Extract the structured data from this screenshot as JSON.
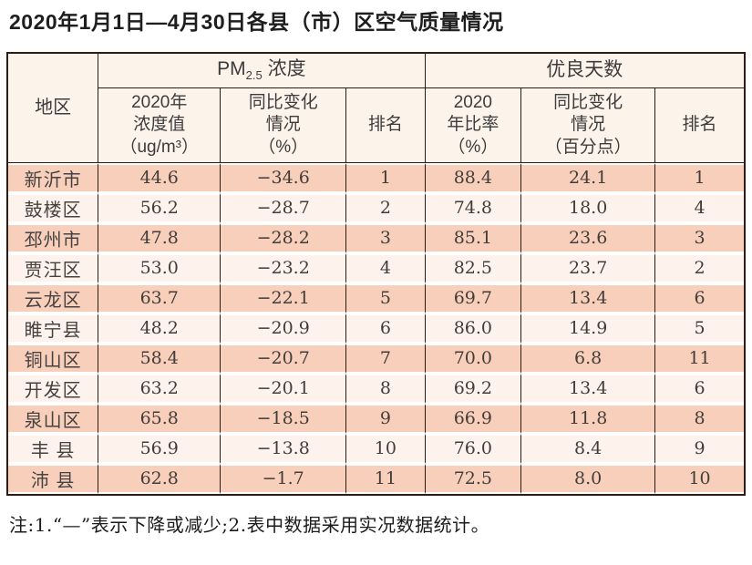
{
  "title": "2020年1月1日—4月30日各县（市）区空气质量情况",
  "table": {
    "region_header": "地区",
    "pm_group": {
      "prefix": "PM",
      "sub": "2.5",
      "suffix": " 浓度"
    },
    "good_group_label": "优良天数",
    "sub_headers": [
      "2020年\n浓度值\n（ug/m³）",
      "同比变化\n情况\n（%）",
      "排名",
      "2020\n年比率\n（%）",
      "同比变化\n情况\n（百分点）",
      "排名"
    ],
    "rows": [
      {
        "region": "新沂市",
        "pm_value": "44.6",
        "pm_change": "−34.6",
        "pm_rank": "1",
        "good_ratio": "88.4",
        "good_change": "24.1",
        "good_rank": "1"
      },
      {
        "region": "鼓楼区",
        "pm_value": "56.2",
        "pm_change": "−28.7",
        "pm_rank": "2",
        "good_ratio": "74.8",
        "good_change": "18.0",
        "good_rank": "4"
      },
      {
        "region": "邳州市",
        "pm_value": "47.8",
        "pm_change": "−28.2",
        "pm_rank": "3",
        "good_ratio": "85.1",
        "good_change": "23.6",
        "good_rank": "3"
      },
      {
        "region": "贾汪区",
        "pm_value": "53.0",
        "pm_change": "−23.2",
        "pm_rank": "4",
        "good_ratio": "82.5",
        "good_change": "23.7",
        "good_rank": "2"
      },
      {
        "region": "云龙区",
        "pm_value": "63.7",
        "pm_change": "−22.1",
        "pm_rank": "5",
        "good_ratio": "69.7",
        "good_change": "13.4",
        "good_rank": "6"
      },
      {
        "region": "睢宁县",
        "pm_value": "48.2",
        "pm_change": "−20.9",
        "pm_rank": "6",
        "good_ratio": "86.0",
        "good_change": "14.9",
        "good_rank": "5"
      },
      {
        "region": "铜山区",
        "pm_value": "58.4",
        "pm_change": "−20.7",
        "pm_rank": "7",
        "good_ratio": "70.0",
        "good_change": "6.8",
        "good_rank": "11"
      },
      {
        "region": "开发区",
        "pm_value": "63.2",
        "pm_change": "−20.1",
        "pm_rank": "8",
        "good_ratio": "69.2",
        "good_change": "13.4",
        "good_rank": "6"
      },
      {
        "region": "泉山区",
        "pm_value": "65.8",
        "pm_change": "−18.5",
        "pm_rank": "9",
        "good_ratio": "66.9",
        "good_change": "11.8",
        "good_rank": "8"
      },
      {
        "region": "丰 县",
        "pm_value": "56.9",
        "pm_change": "−13.8",
        "pm_rank": "10",
        "good_ratio": "76.0",
        "good_change": "8.4",
        "good_rank": "9"
      },
      {
        "region": "沛 县",
        "pm_value": "62.8",
        "pm_change": "−1.7",
        "pm_rank": "11",
        "good_ratio": "72.5",
        "good_change": "8.0",
        "good_rank": "10"
      }
    ]
  },
  "footnote": "注:1.“—”表示下降或减少;2.表中数据采用实况数据统计。",
  "colors": {
    "border": "#2b1c15",
    "header_bg": "#fcf3ea",
    "row_stripe": "#f8cfbb",
    "row_light": "#fdf2ec",
    "text": "#423d39"
  }
}
